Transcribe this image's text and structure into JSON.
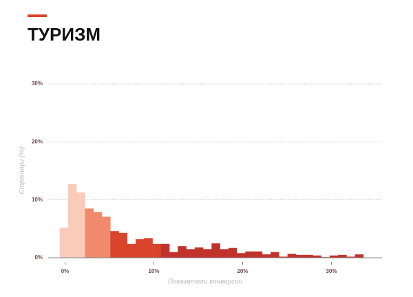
{
  "chart_data": {
    "type": "histogram",
    "title": "ТУРИЗМ",
    "x_label": "Показатели конверсии",
    "y_label": "Страницы (%)",
    "bins": [
      -0.6,
      0.35,
      1.3,
      2.25,
      3.2,
      4.15,
      5.1,
      6.05,
      7,
      7.95,
      8.9,
      9.85,
      10.8,
      11.75,
      12.7,
      13.65,
      14.6,
      15.55,
      16.5,
      17.45,
      18.4,
      19.35,
      20.3,
      21.25,
      22.2,
      23.15,
      24.1,
      25.05,
      26,
      26.95,
      27.9,
      28.85,
      29.8,
      30.75,
      31.7,
      32.65,
      33.6
    ],
    "values": [
      5.2,
      12.7,
      11.3,
      8.5,
      7.9,
      7.1,
      4.6,
      4.3,
      2.4,
      3.2,
      3.4,
      2.4,
      2.4,
      1.0,
      2.0,
      1.5,
      1.8,
      1.5,
      2.5,
      1.5,
      1.7,
      0.8,
      1.1,
      1.1,
      0.6,
      1.0,
      0.2,
      0.7,
      0.5,
      0.5,
      0.4,
      0.1,
      0.4,
      0.5,
      0.2,
      0.6
    ],
    "colors": [
      "#f9cbb8",
      "#f9cbb8",
      "#f9cbb8",
      "#f08a6c",
      "#f08a6c",
      "#f08a6c",
      "#d9442b",
      "#d9442b",
      "#d9442b",
      "#d9442b",
      "#d9442b",
      "#d9442b",
      "#c0332a",
      "#c0332a",
      "#c0332a",
      "#c0332a",
      "#c0332a",
      "#c0332a",
      "#c0332a",
      "#c0332a",
      "#c0332a",
      "#c0332a",
      "#c0332a",
      "#c0332a",
      "#c0332a",
      "#c0332a",
      "#c0332a",
      "#c0332a",
      "#c0332a",
      "#c0332a",
      "#c0332a",
      "#c0332a",
      "#c0332a",
      "#c0332a",
      "#c0332a",
      "#c0332a"
    ],
    "xlim": [
      -1.9,
      35.7
    ],
    "ylim": [
      0,
      30
    ],
    "xticks": [
      {
        "value": 0,
        "label": "0%"
      },
      {
        "value": 10,
        "label": "10%"
      },
      {
        "value": 20,
        "label": "20%"
      },
      {
        "value": 30,
        "label": "30%"
      }
    ],
    "yticks": [
      {
        "value": 0,
        "label": "0%"
      },
      {
        "value": 10,
        "label": "10%"
      },
      {
        "value": 20,
        "label": "20%"
      },
      {
        "value": 30,
        "label": "30%"
      }
    ],
    "grid": true
  }
}
